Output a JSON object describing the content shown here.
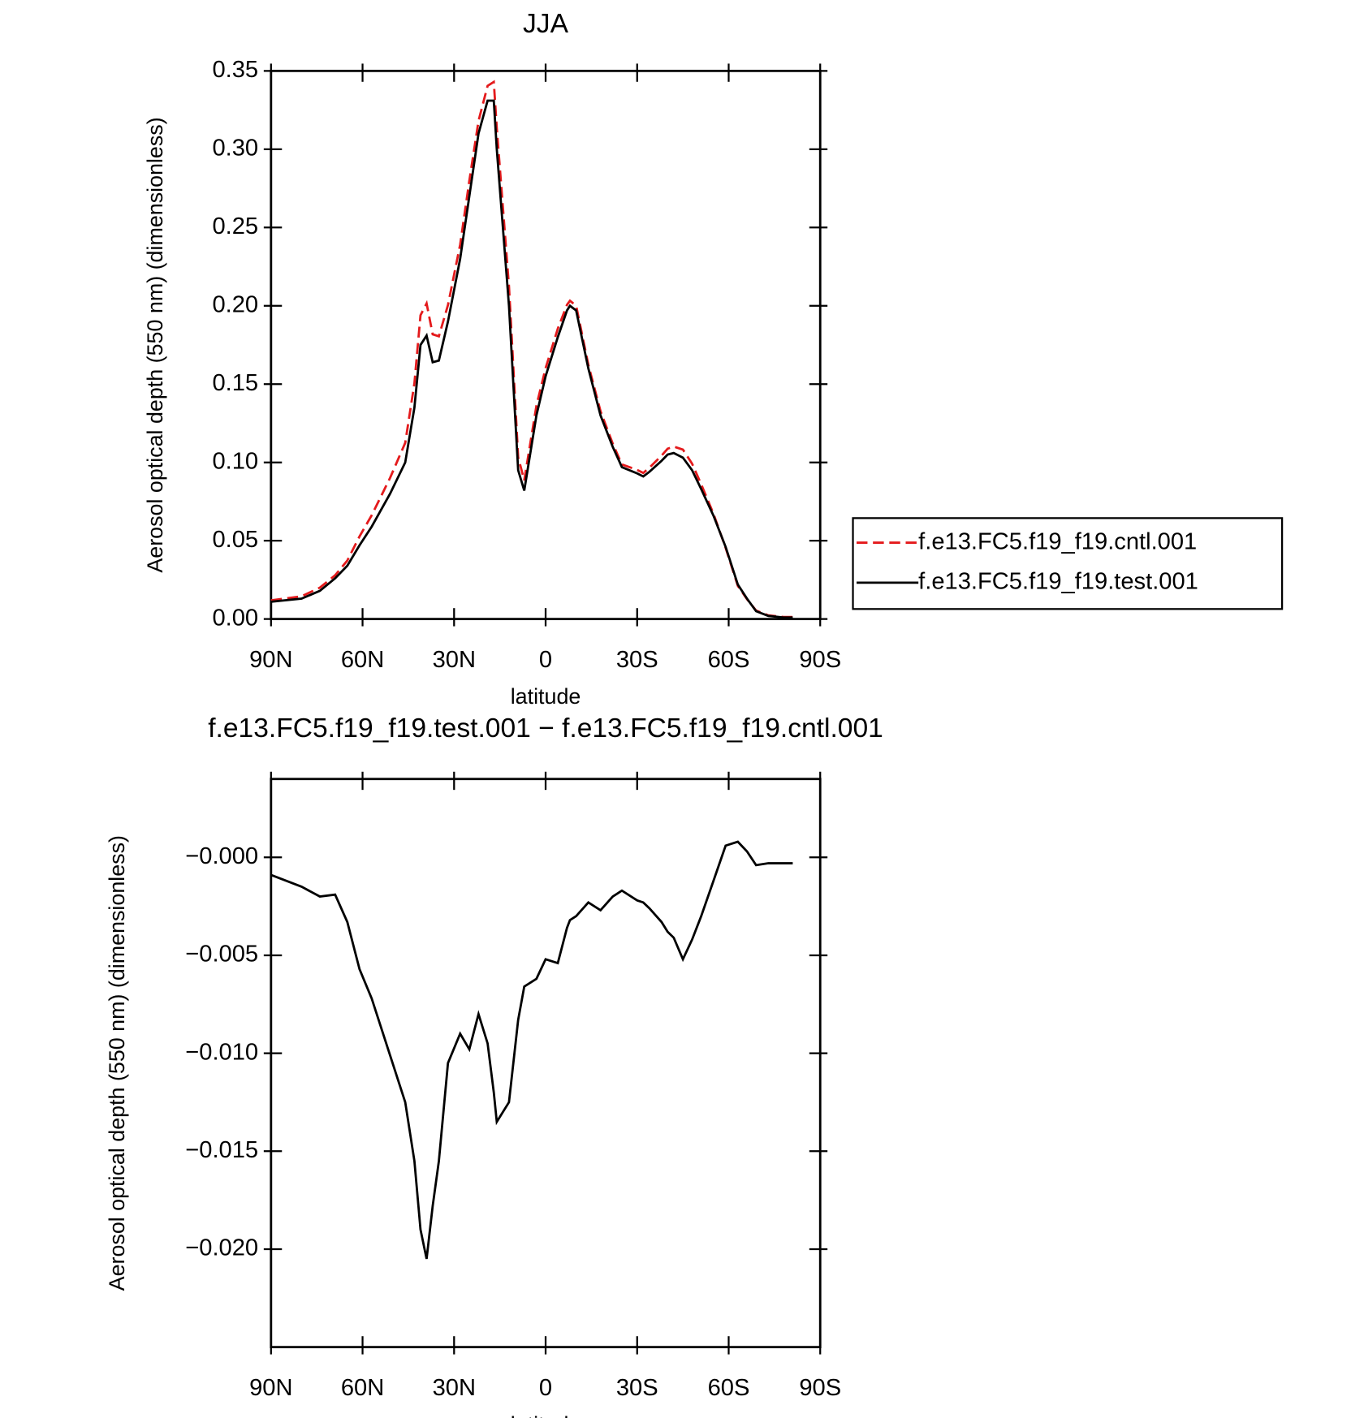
{
  "chart_data": [
    {
      "type": "line",
      "title": "JJA",
      "xlabel": "latitude",
      "ylabel": "Aerosol optical depth (550 nm) (dimensionless)",
      "x": [
        90,
        80,
        74,
        69,
        65,
        61,
        57,
        51,
        46,
        43,
        41,
        39,
        37,
        35,
        32,
        28,
        25,
        22,
        19,
        17,
        16,
        12,
        9,
        7,
        3,
        0,
        -4,
        -7,
        -8,
        -10,
        -14,
        -18,
        -22,
        -25,
        -30,
        -32,
        -34,
        -38,
        -40,
        -42,
        -45,
        -48,
        -51,
        -55,
        -59,
        -63,
        -66,
        -69,
        -73,
        -78,
        -81
      ],
      "series": [
        {
          "name": "f.e13.FC5.f19_f19.cntl.001",
          "color": "#e41a1c",
          "dash": true,
          "values": [
            0.0119,
            0.0145,
            0.02,
            0.0279,
            0.0373,
            0.0527,
            0.0662,
            0.0901,
            0.1125,
            0.1505,
            0.194,
            0.2015,
            0.1818,
            0.1805,
            0.2005,
            0.239,
            0.2798,
            0.318,
            0.3405,
            0.343,
            0.3135,
            0.2125,
            0.1033,
            0.0886,
            0.1362,
            0.1602,
            0.1854,
            0.2006,
            0.2032,
            0.2,
            0.1623,
            0.1327,
            0.112,
            0.0987,
            0.0952,
            0.0933,
            0.0966,
            0.1043,
            0.1088,
            0.1101,
            0.1082,
            0.0992,
            0.086,
            0.0672,
            0.0454,
            0.0212,
            0.0127,
            0.0054,
            0.0023,
            0.0013,
            0.0013
          ]
        },
        {
          "name": "f.e13.FC5.f19_f19.test.001",
          "color": "#000000",
          "dash": false,
          "values": [
            0.011,
            0.013,
            0.018,
            0.026,
            0.034,
            0.047,
            0.059,
            0.08,
            0.1,
            0.135,
            0.175,
            0.181,
            0.164,
            0.165,
            0.19,
            0.23,
            0.27,
            0.31,
            0.331,
            0.331,
            0.3,
            0.2,
            0.095,
            0.082,
            0.13,
            0.155,
            0.18,
            0.197,
            0.2,
            0.197,
            0.16,
            0.13,
            0.11,
            0.097,
            0.093,
            0.091,
            0.094,
            0.101,
            0.105,
            0.106,
            0.103,
            0.095,
            0.083,
            0.066,
            0.046,
            0.022,
            0.013,
            0.005,
            0.002,
            0.001,
            0.001
          ]
        }
      ],
      "xlim": [
        90,
        -90
      ],
      "xticks": [
        {
          "value": 90,
          "label": "90N"
        },
        {
          "value": 60,
          "label": "60N"
        },
        {
          "value": 30,
          "label": "30N"
        },
        0,
        {
          "value": -30,
          "label": "30S"
        },
        {
          "value": -60,
          "label": "60S"
        },
        {
          "value": -90,
          "label": "90S"
        }
      ],
      "ylim": [
        0,
        0.35
      ],
      "yticks": [
        {
          "value": 0,
          "label": "0.00"
        },
        0.05,
        {
          "value": 0.1,
          "label": "0.10"
        },
        0.15,
        {
          "value": 0.2,
          "label": "0.20"
        },
        0.25,
        {
          "value": 0.3,
          "label": "0.30"
        },
        0.35
      ],
      "legend": "outside-right"
    },
    {
      "type": "line",
      "title": "f.e13.FC5.f19_f19.test.001 − f.e13.FC5.f19_f19.cntl.001",
      "xlabel": "latitude",
      "ylabel": "Aerosol optical depth (550 nm) (dimensionless)",
      "x": [
        90,
        80,
        74,
        69,
        65,
        61,
        57,
        51,
        46,
        43,
        41,
        39,
        37,
        35,
        32,
        28,
        25,
        22,
        19,
        17,
        16,
        12,
        9,
        7,
        3,
        0,
        -4,
        -7,
        -8,
        -10,
        -14,
        -18,
        -22,
        -25,
        -30,
        -32,
        -34,
        -38,
        -40,
        -42,
        -45,
        -48,
        -51,
        -55,
        -59,
        -63,
        -66,
        -69,
        -73,
        -78,
        -81
      ],
      "series": [
        {
          "color": "#000000",
          "dash": false,
          "values": [
            -0.0009,
            -0.0015,
            -0.002,
            -0.0019,
            -0.0033,
            -0.0057,
            -0.0072,
            -0.0101,
            -0.0125,
            -0.0155,
            -0.019,
            -0.0205,
            -0.0178,
            -0.0155,
            -0.0105,
            -0.009,
            -0.0098,
            -0.008,
            -0.0095,
            -0.012,
            -0.0135,
            -0.0125,
            -0.0083,
            -0.0066,
            -0.0062,
            -0.0052,
            -0.0054,
            -0.0036,
            -0.0032,
            -0.003,
            -0.0023,
            -0.0027,
            -0.002,
            -0.0017,
            -0.0022,
            -0.0023,
            -0.0026,
            -0.0033,
            -0.0038,
            -0.0041,
            -0.0052,
            -0.0042,
            -0.003,
            -0.0012,
            0.0006,
            0.0008,
            0.0003,
            -0.0004,
            -0.0003,
            -0.0003,
            -0.0003
          ]
        }
      ],
      "xlim": [
        90,
        -90
      ],
      "xticks": [
        {
          "value": 90,
          "label": "90N"
        },
        {
          "value": 60,
          "label": "60N"
        },
        {
          "value": 30,
          "label": "30N"
        },
        0,
        {
          "value": -30,
          "label": "30S"
        },
        {
          "value": -60,
          "label": "60S"
        },
        {
          "value": -90,
          "label": "90S"
        }
      ],
      "ylim": [
        -0.025,
        0.004
      ],
      "yticks": [
        {
          "value": 0,
          "label": "−0.000"
        },
        {
          "value": -0.005,
          "label": "−0.005"
        },
        {
          "value": -0.01,
          "label": "−0.010"
        },
        {
          "value": -0.015,
          "label": "−0.015"
        },
        {
          "value": -0.02,
          "label": "−0.020"
        }
      ]
    }
  ]
}
